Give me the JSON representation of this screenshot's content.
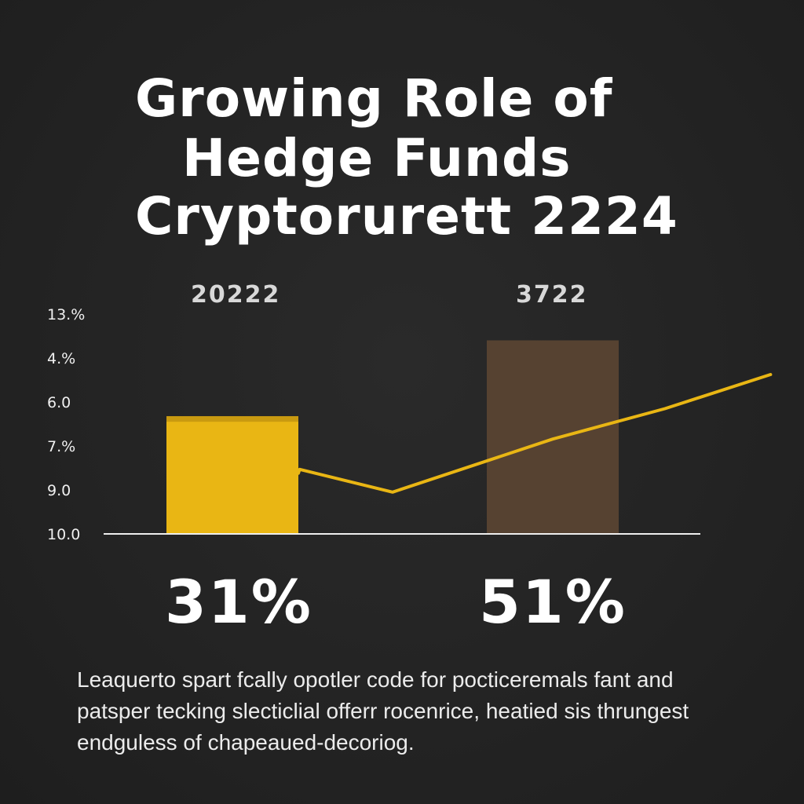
{
  "title_lines": [
    "Growing Role of",
    "Hedge Funds",
    "Cryptorurett 2224"
  ],
  "caption": "Leaquerto spart fcally opotler code for pocticeremals fant and patsper tecking slecticlial offerr rocenrice, heatied sis thrungest endguless of chapeaued-decoriog.",
  "chart_data": {
    "type": "bar",
    "title": "Growing Role of Hedge Funds Cryptorurett 2224",
    "categories": [
      "20222",
      "3722"
    ],
    "series": [
      {
        "values": [
          31,
          51
        ],
        "value_labels": [
          "31%",
          "51%"
        ],
        "colors": [
          "#e9b614",
          "#564231"
        ]
      }
    ],
    "y_tick_labels": [
      "13.%",
      "4.%",
      "6.0",
      "7.%",
      "9.0",
      "10.0"
    ],
    "ylim": [
      0,
      60
    ],
    "overlay_line": {
      "color": "#e9b614",
      "points": [
        {
          "x": 0.0,
          "y": 16
        },
        {
          "x": 0.21,
          "y": 17
        },
        {
          "x": 0.5,
          "y": 11
        },
        {
          "x": 1.0,
          "y": 25
        },
        {
          "x": 1.35,
          "y": 33
        },
        {
          "x": 1.68,
          "y": 42
        }
      ]
    },
    "baseline_color": "#eeeeee",
    "grid": false,
    "legend": "none"
  }
}
